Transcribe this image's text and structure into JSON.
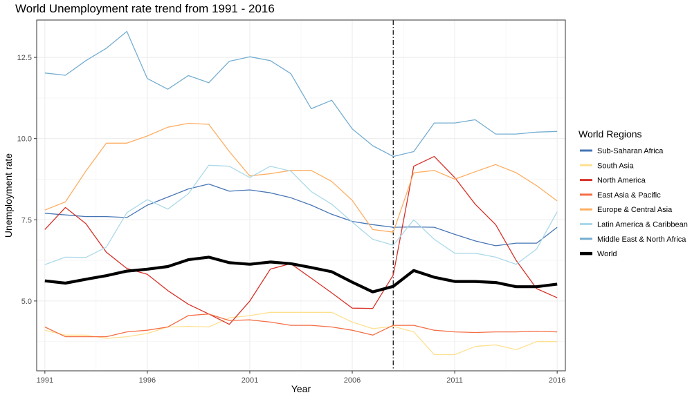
{
  "chart_data": {
    "type": "line",
    "title": "World Unemployment rate trend from 1991 - 2016",
    "xlabel": "Year",
    "ylabel": "Unemployment rate",
    "xlim": [
      1990.6,
      2016.4
    ],
    "ylim": [
      2.85,
      13.65
    ],
    "x_ticks": [
      1991,
      1996,
      2001,
      2006,
      2011,
      2016
    ],
    "y_ticks": [
      5.0,
      7.5,
      10.0,
      12.5
    ],
    "y_tick_labels": [
      "5.0",
      "7.5",
      "10.0",
      "12.5"
    ],
    "grid": true,
    "legend_title": "World Regions",
    "legend_position": "right",
    "vline_x": 2008,
    "x": [
      1991,
      1992,
      1993,
      1994,
      1995,
      1996,
      1997,
      1998,
      1999,
      2000,
      2001,
      2002,
      2003,
      2004,
      2005,
      2006,
      2007,
      2008,
      2009,
      2010,
      2011,
      2012,
      2013,
      2014,
      2015,
      2016
    ],
    "series": [
      {
        "name": "Sub-Saharan Africa",
        "color": "#4575b4",
        "values": [
          7.7,
          7.65,
          7.6,
          7.6,
          7.57,
          7.95,
          8.2,
          8.45,
          8.6,
          8.38,
          8.42,
          8.33,
          8.18,
          7.95,
          7.67,
          7.45,
          7.35,
          7.27,
          7.28,
          7.27,
          7.05,
          6.85,
          6.7,
          6.78,
          6.78,
          7.27
        ]
      },
      {
        "name": "South Asia",
        "color": "#fee090",
        "values": [
          4.1,
          3.95,
          3.95,
          3.85,
          3.9,
          4.0,
          4.2,
          4.22,
          4.2,
          4.48,
          4.55,
          4.65,
          4.65,
          4.65,
          4.65,
          4.35,
          4.15,
          4.22,
          4.05,
          3.35,
          3.35,
          3.6,
          3.65,
          3.5,
          3.75,
          3.75
        ]
      },
      {
        "name": "North America",
        "color": "#d73027",
        "values": [
          7.2,
          7.88,
          7.38,
          6.5,
          6.0,
          5.82,
          5.32,
          4.9,
          4.6,
          4.28,
          5.0,
          5.98,
          6.15,
          5.7,
          5.25,
          4.78,
          4.77,
          5.8,
          9.15,
          9.45,
          8.8,
          7.98,
          7.35,
          6.25,
          5.38,
          5.1
        ]
      },
      {
        "name": "East Asia & Pacific",
        "color": "#f46d43",
        "values": [
          4.2,
          3.9,
          3.9,
          3.9,
          4.05,
          4.1,
          4.2,
          4.55,
          4.6,
          4.4,
          4.42,
          4.35,
          4.25,
          4.25,
          4.2,
          4.1,
          3.95,
          4.25,
          4.25,
          4.1,
          4.05,
          4.03,
          4.05,
          4.05,
          4.07,
          4.05
        ]
      },
      {
        "name": "Europe & Central Asia",
        "color": "#fdae61",
        "values": [
          7.8,
          8.05,
          9.0,
          9.86,
          9.86,
          10.08,
          10.35,
          10.47,
          10.44,
          9.6,
          8.85,
          8.92,
          9.02,
          9.02,
          8.68,
          8.1,
          7.2,
          7.12,
          8.95,
          9.02,
          8.75,
          8.98,
          9.2,
          8.95,
          8.55,
          8.08
        ]
      },
      {
        "name": "Latin America & Caribbean",
        "color": "#abd9e9",
        "values": [
          6.12,
          6.35,
          6.34,
          6.66,
          7.72,
          8.12,
          7.83,
          8.3,
          9.18,
          9.15,
          8.8,
          9.15,
          9.0,
          8.37,
          7.98,
          7.43,
          6.9,
          6.72,
          7.5,
          6.9,
          6.47,
          6.47,
          6.35,
          6.13,
          6.6,
          7.75
        ]
      },
      {
        "name": "Middle East & North Africa",
        "color": "#74add1",
        "values": [
          12.02,
          11.95,
          12.4,
          12.78,
          13.3,
          11.85,
          11.52,
          11.94,
          11.72,
          12.38,
          12.52,
          12.4,
          12.0,
          10.92,
          11.18,
          10.3,
          9.78,
          9.45,
          9.6,
          10.48,
          10.48,
          10.58,
          10.14,
          10.14,
          10.2,
          10.22
        ]
      },
      {
        "name": "World",
        "color": "#000000",
        "values": [
          5.62,
          5.55,
          5.67,
          5.78,
          5.92,
          5.98,
          6.06,
          6.27,
          6.35,
          6.18,
          6.13,
          6.2,
          6.15,
          6.03,
          5.9,
          5.58,
          5.28,
          5.45,
          5.94,
          5.73,
          5.6,
          5.6,
          5.57,
          5.44,
          5.44,
          5.52
        ]
      }
    ]
  }
}
